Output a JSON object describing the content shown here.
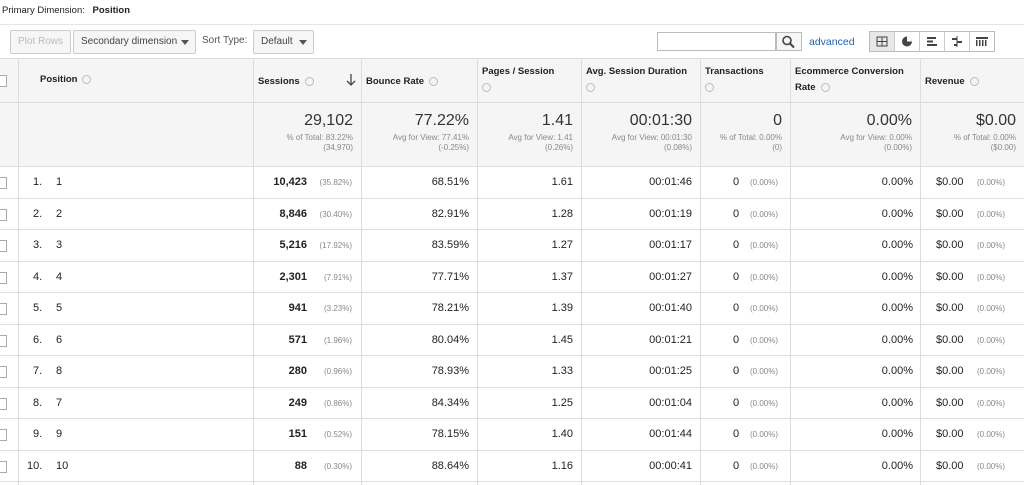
{
  "primary_dimension": {
    "label": "Primary Dimension:",
    "value": "Position"
  },
  "toolbar": {
    "plot_rows": "Plot Rows",
    "secondary_dimension": "Secondary dimension",
    "sort_type_label": "Sort Type:",
    "sort_type": "Default",
    "advanced": "advanced"
  },
  "table": {
    "headers": [
      "Position",
      "Sessions",
      "Bounce Rate",
      "Pages / Session",
      "Avg. Session Duration",
      "Transactions",
      "Ecommerce Conversion Rate",
      "Revenue"
    ],
    "totals": [
      {
        "value": "29,102",
        "lines": [
          "% of Total: 83.22%",
          "(34,970)"
        ]
      },
      {
        "value": "77.22%",
        "lines": [
          "Avg for View: 77.41%",
          "(-0.25%)"
        ]
      },
      {
        "value": "1.41",
        "lines": [
          "Avg for View: 1.41",
          "(0.26%)"
        ]
      },
      {
        "value": "00:01:30",
        "lines": [
          "Avg for View: 00:01:30",
          "(0.08%)"
        ]
      },
      {
        "value": "0",
        "lines": [
          "% of Total: 0.00%",
          "(0)"
        ]
      },
      {
        "value": "0.00%",
        "lines": [
          "Avg for View: 0.00%",
          "(0.00%)"
        ]
      },
      {
        "value": "$0.00",
        "lines": [
          "% of Total: 0.00%",
          "($0.00)"
        ]
      }
    ],
    "rows": [
      [
        "1.",
        "1",
        "10,423",
        "(35.82%)",
        "68.51%",
        "1.61",
        "00:01:46",
        "0",
        "(0.00%)",
        "0.00%",
        "$0.00",
        "(0.00%)"
      ],
      [
        "2.",
        "2",
        "8,846",
        "(30.40%)",
        "82.91%",
        "1.28",
        "00:01:19",
        "0",
        "(0.00%)",
        "0.00%",
        "$0.00",
        "(0.00%)"
      ],
      [
        "3.",
        "3",
        "5,216",
        "(17.92%)",
        "83.59%",
        "1.27",
        "00:01:17",
        "0",
        "(0.00%)",
        "0.00%",
        "$0.00",
        "(0.00%)"
      ],
      [
        "4.",
        "4",
        "2,301",
        "(7.91%)",
        "77.71%",
        "1.37",
        "00:01:27",
        "0",
        "(0.00%)",
        "0.00%",
        "$0.00",
        "(0.00%)"
      ],
      [
        "5.",
        "5",
        "941",
        "(3.23%)",
        "78.21%",
        "1.39",
        "00:01:40",
        "0",
        "(0.00%)",
        "0.00%",
        "$0.00",
        "(0.00%)"
      ],
      [
        "6.",
        "6",
        "571",
        "(1.96%)",
        "80.04%",
        "1.45",
        "00:01:21",
        "0",
        "(0.00%)",
        "0.00%",
        "$0.00",
        "(0.00%)"
      ],
      [
        "7.",
        "8",
        "280",
        "(0.96%)",
        "78.93%",
        "1.33",
        "00:01:25",
        "0",
        "(0.00%)",
        "0.00%",
        "$0.00",
        "(0.00%)"
      ],
      [
        "8.",
        "7",
        "249",
        "(0.86%)",
        "84.34%",
        "1.25",
        "00:01:04",
        "0",
        "(0.00%)",
        "0.00%",
        "$0.00",
        "(0.00%)"
      ],
      [
        "9.",
        "9",
        "151",
        "(0.52%)",
        "78.15%",
        "1.40",
        "00:01:44",
        "0",
        "(0.00%)",
        "0.00%",
        "$0.00",
        "(0.00%)"
      ],
      [
        "10.",
        "10",
        "88",
        "(0.30%)",
        "88.64%",
        "1.16",
        "00:00:41",
        "0",
        "(0.00%)",
        "0.00%",
        "$0.00",
        "(0.00%)"
      ]
    ]
  }
}
